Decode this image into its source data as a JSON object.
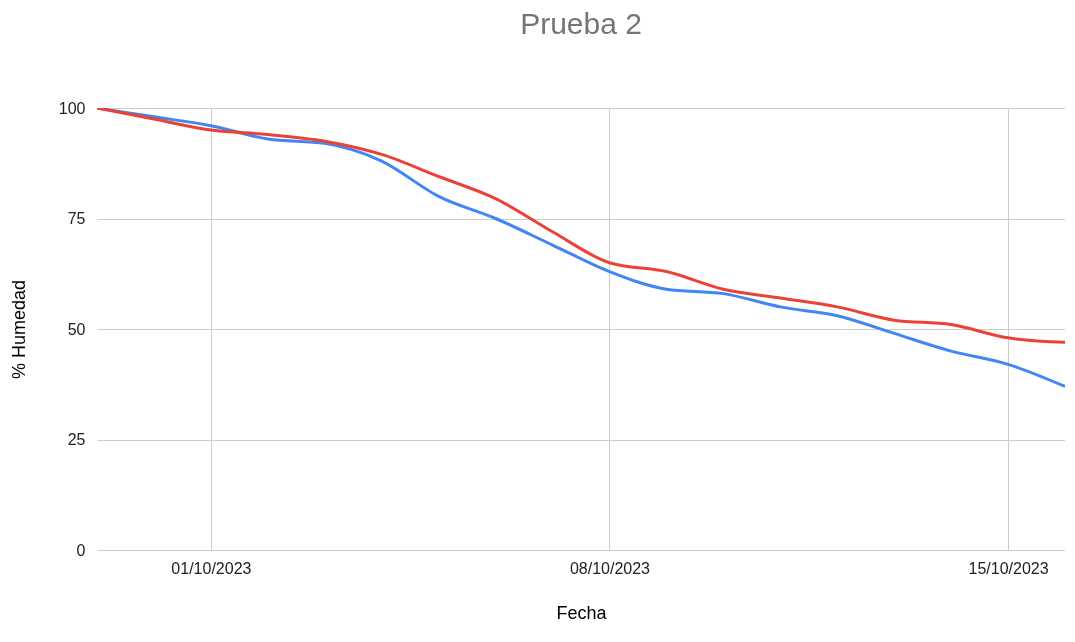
{
  "chart_data": {
    "type": "line",
    "title": "Prueba 2",
    "xlabel": "Fecha",
    "ylabel": "% Humedad",
    "x": [
      "2023-09-29",
      "2023-09-30",
      "2023-10-01",
      "2023-10-02",
      "2023-10-03",
      "2023-10-04",
      "2023-10-05",
      "2023-10-06",
      "2023-10-07",
      "2023-10-08",
      "2023-10-09",
      "2023-10-10",
      "2023-10-11",
      "2023-10-12",
      "2023-10-13",
      "2023-10-14",
      "2023-10-15",
      "2023-10-16"
    ],
    "series": [
      {
        "color": "#4285f4",
        "values": [
          100,
          98,
          96,
          93,
          92,
          88,
          80,
          75,
          69,
          63,
          59,
          58,
          55,
          53,
          49,
          45,
          42,
          37
        ]
      },
      {
        "color": "#ea4335",
        "values": [
          100,
          97.5,
          95,
          94,
          92.5,
          89.5,
          84.5,
          79.5,
          72,
          65,
          63,
          59,
          57,
          55,
          52,
          51,
          48,
          47
        ]
      }
    ],
    "xlim": [
      "2023-09-29",
      "2023-10-16"
    ],
    "xticks": [
      {
        "value": "2023-10-01",
        "label": "01/10/2023"
      },
      {
        "value": "2023-10-08",
        "label": "08/10/2023"
      },
      {
        "value": "2023-10-15",
        "label": "15/10/2023"
      }
    ],
    "ylim": [
      0,
      100
    ],
    "yticks": [
      0,
      25,
      50,
      75,
      100
    ],
    "grid": true,
    "marker": "none",
    "line_style": "solid"
  }
}
